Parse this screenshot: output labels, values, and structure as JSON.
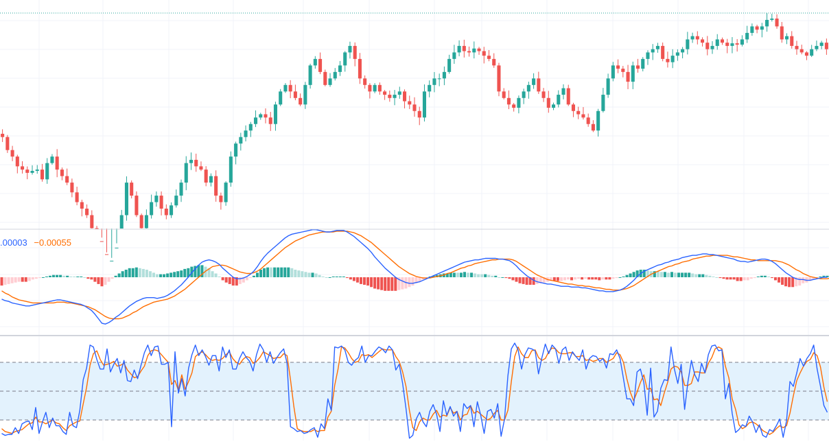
{
  "colors": {
    "up": "#26a69a",
    "down": "#ef5350",
    "hist_up_strong": "#26a69a",
    "hist_up_weak": "#b2dfdb",
    "hist_down_strong": "#ef5350",
    "hist_down_weak": "#ffcdd2",
    "macd_line": "#2962ff",
    "signal_line": "#ff6d00",
    "stoch_k": "#2962ff",
    "stoch_d": "#ff6d00",
    "grid": "#f0f3fa",
    "band_fill": "#e3f2fd",
    "separator": "#d1d4dc",
    "dashed_level": "#787b86"
  },
  "macd_legend": {
    "macd_value": ".00003",
    "signal_value": "−0.00055"
  },
  "chart_data": [
    {
      "type": "candlestick",
      "panel": "price",
      "grid": true,
      "y_range": [
        0,
        330
      ],
      "peak_level": 315,
      "wick_jitter_seed": 7,
      "closes": [
        130,
        110,
        100,
        85,
        80,
        75,
        78,
        80,
        65,
        90,
        100,
        80,
        70,
        60,
        45,
        30,
        20,
        10,
        -10,
        -30,
        -50,
        -70,
        -60,
        -40,
        10,
        60,
        40,
        10,
        -10,
        10,
        30,
        40,
        20,
        10,
        25,
        40,
        60,
        90,
        95,
        85,
        80,
        60,
        70,
        40,
        30,
        60,
        100,
        120,
        130,
        140,
        150,
        160,
        165,
        160,
        150,
        180,
        200,
        210,
        200,
        190,
        180,
        210,
        240,
        250,
        230,
        210,
        220,
        230,
        240,
        260,
        270,
        250,
        220,
        210,
        200,
        210,
        200,
        195,
        190,
        195,
        200,
        185,
        180,
        170,
        160,
        200,
        210,
        220,
        220,
        230,
        250,
        260,
        270,
        262,
        260,
        266,
        262,
        255,
        250,
        240,
        200,
        190,
        180,
        175,
        190,
        200,
        210,
        220,
        200,
        190,
        175,
        180,
        195,
        205,
        180,
        170,
        165,
        160,
        150,
        140,
        170,
        195,
        220,
        240,
        235,
        230,
        215,
        240,
        235,
        250,
        260,
        265,
        270,
        250,
        245,
        255,
        260,
        265,
        280,
        285,
        280,
        275,
        265,
        270,
        280,
        275,
        270,
        274,
        272,
        280,
        290,
        300,
        295,
        300,
        310,
        312,
        300,
        280,
        285,
        270,
        265,
        260,
        255,
        265,
        270,
        275,
        265
      ]
    },
    {
      "type": "macd",
      "panel": "macd",
      "grid": true,
      "y_range": [
        -1,
        1
      ],
      "macd": [
        -0.29,
        -0.31,
        -0.32,
        -0.34,
        -0.35,
        -0.36,
        -0.37,
        -0.38,
        -0.38,
        -0.37,
        -0.36,
        -0.35,
        -0.34,
        -0.33,
        -0.32,
        -0.31,
        -0.3,
        -0.3,
        -0.31,
        -0.32,
        -0.33,
        -0.34,
        -0.35,
        -0.36,
        -0.38,
        -0.41,
        -0.44,
        -0.49,
        -0.55,
        -0.61,
        -0.62,
        -0.6,
        -0.57,
        -0.53,
        -0.5,
        -0.46,
        -0.42,
        -0.38,
        -0.35,
        -0.32,
        -0.3,
        -0.28,
        -0.27,
        -0.27,
        -0.27,
        -0.28,
        -0.27,
        -0.26,
        -0.24,
        -0.21,
        -0.18,
        -0.14,
        -0.1,
        -0.05,
        0.0,
        0.06,
        0.11,
        0.16,
        0.2,
        0.22,
        0.23,
        0.22,
        0.2,
        0.17,
        0.12,
        0.08,
        0.04,
        0.0,
        -0.02,
        -0.02,
        -0.01,
        0.01,
        0.04,
        0.08,
        0.14,
        0.21,
        0.27,
        0.32,
        0.36,
        0.4,
        0.44,
        0.48,
        0.52,
        0.55,
        0.57,
        0.58,
        0.59,
        0.6,
        0.61,
        0.62,
        0.63,
        0.63,
        0.62,
        0.61,
        0.6,
        0.6,
        0.61,
        0.62,
        0.62,
        0.62,
        0.6,
        0.57,
        0.54,
        0.5,
        0.46,
        0.42,
        0.38,
        0.33,
        0.27,
        0.22,
        0.17,
        0.12,
        0.08,
        0.04,
        0.0,
        -0.03,
        -0.05,
        -0.07,
        -0.08,
        -0.08,
        -0.07,
        -0.06,
        -0.04,
        -0.02,
        0.0,
        0.02,
        0.04,
        0.06,
        0.08,
        0.1,
        0.12,
        0.14,
        0.16,
        0.18,
        0.2,
        0.21,
        0.22,
        0.23,
        0.23,
        0.24,
        0.25,
        0.25,
        0.25,
        0.25,
        0.24,
        0.24,
        0.23,
        0.22,
        0.19,
        0.15,
        0.1,
        0.06,
        0.02,
        -0.01,
        -0.04,
        -0.06,
        -0.07,
        -0.08,
        -0.09,
        -0.09,
        -0.1,
        -0.11,
        -0.12,
        -0.12,
        -0.12,
        -0.13,
        -0.13,
        -0.13,
        -0.14,
        -0.14,
        -0.15,
        -0.16,
        -0.17,
        -0.18,
        -0.18,
        -0.19,
        -0.19,
        -0.19,
        -0.18,
        -0.17,
        -0.15,
        -0.12,
        -0.08,
        -0.04,
        0.01,
        0.05,
        0.08,
        0.1,
        0.12,
        0.14,
        0.16,
        0.17,
        0.19,
        0.2,
        0.22,
        0.23,
        0.24,
        0.26,
        0.27,
        0.28,
        0.29,
        0.29,
        0.3,
        0.31,
        0.31,
        0.3,
        0.3,
        0.29,
        0.28,
        0.27,
        0.26,
        0.25,
        0.24,
        0.22,
        0.21,
        0.21,
        0.2,
        0.21,
        0.22,
        0.23,
        0.24,
        0.24,
        0.23,
        0.21,
        0.18,
        0.14,
        0.1,
        0.06,
        0.03,
        0.0,
        -0.02,
        -0.03,
        -0.03,
        -0.04,
        -0.04,
        -0.03,
        -0.02,
        -0.01,
        0.0,
        0.0
      ],
      "signal": [
        -0.18,
        -0.21,
        -0.23,
        -0.26,
        -0.28,
        -0.3,
        -0.31,
        -0.32,
        -0.33,
        -0.34,
        -0.34,
        -0.34,
        -0.34,
        -0.34,
        -0.34,
        -0.34,
        -0.33,
        -0.33,
        -0.33,
        -0.34,
        -0.34,
        -0.35,
        -0.36,
        -0.37,
        -0.38,
        -0.39,
        -0.41,
        -0.43,
        -0.46,
        -0.49,
        -0.52,
        -0.54,
        -0.55,
        -0.55,
        -0.55,
        -0.54,
        -0.52,
        -0.5,
        -0.47,
        -0.45,
        -0.42,
        -0.39,
        -0.37,
        -0.35,
        -0.33,
        -0.32,
        -0.31,
        -0.3,
        -0.29,
        -0.27,
        -0.25,
        -0.22,
        -0.19,
        -0.16,
        -0.12,
        -0.08,
        -0.04,
        0.0,
        0.04,
        0.08,
        0.11,
        0.14,
        0.15,
        0.16,
        0.16,
        0.15,
        0.13,
        0.11,
        0.09,
        0.07,
        0.06,
        0.05,
        0.05,
        0.06,
        0.08,
        0.11,
        0.15,
        0.19,
        0.23,
        0.27,
        0.31,
        0.35,
        0.39,
        0.42,
        0.45,
        0.48,
        0.5,
        0.52,
        0.54,
        0.56,
        0.57,
        0.58,
        0.59,
        0.6,
        0.6,
        0.6,
        0.6,
        0.61,
        0.61,
        0.61,
        0.61,
        0.6,
        0.59,
        0.57,
        0.55,
        0.52,
        0.49,
        0.46,
        0.42,
        0.38,
        0.34,
        0.3,
        0.26,
        0.22,
        0.18,
        0.14,
        0.11,
        0.08,
        0.05,
        0.03,
        0.01,
        0.0,
        -0.01,
        -0.01,
        -0.01,
        0.0,
        0.01,
        0.02,
        0.03,
        0.05,
        0.06,
        0.08,
        0.1,
        0.12,
        0.13,
        0.15,
        0.16,
        0.18,
        0.19,
        0.2,
        0.21,
        0.22,
        0.23,
        0.23,
        0.24,
        0.24,
        0.24,
        0.24,
        0.23,
        0.21,
        0.18,
        0.15,
        0.12,
        0.09,
        0.06,
        0.03,
        0.01,
        -0.01,
        -0.03,
        -0.04,
        -0.05,
        -0.06,
        -0.07,
        -0.08,
        -0.09,
        -0.09,
        -0.1,
        -0.11,
        -0.11,
        -0.12,
        -0.12,
        -0.13,
        -0.14,
        -0.14,
        -0.15,
        -0.16,
        -0.16,
        -0.17,
        -0.17,
        -0.17,
        -0.16,
        -0.15,
        -0.13,
        -0.11,
        -0.08,
        -0.05,
        -0.02,
        0.01,
        0.04,
        0.06,
        0.08,
        0.1,
        0.12,
        0.14,
        0.15,
        0.17,
        0.18,
        0.2,
        0.21,
        0.22,
        0.24,
        0.25,
        0.26,
        0.27,
        0.28,
        0.28,
        0.29,
        0.29,
        0.29,
        0.29,
        0.29,
        0.28,
        0.27,
        0.27,
        0.26,
        0.25,
        0.24,
        0.23,
        0.23,
        0.22,
        0.22,
        0.22,
        0.22,
        0.22,
        0.22,
        0.21,
        0.2,
        0.18,
        0.16,
        0.13,
        0.1,
        0.08,
        0.05,
        0.03,
        0.01,
        0.0,
        -0.01,
        -0.02,
        -0.02,
        -0.02,
        -0.01,
        -0.01,
        0.0
      ]
    },
    {
      "type": "stochastic",
      "panel": "stochastic",
      "grid": true,
      "y_range": [
        0,
        100
      ],
      "levels": [
        80,
        50,
        20
      ],
      "k": [
        6,
        4,
        5,
        5,
        12,
        6,
        16,
        18,
        19,
        10,
        33,
        6,
        18,
        28,
        12,
        22,
        14,
        14,
        8,
        5,
        28,
        14,
        12,
        30,
        62,
        74,
        98,
        96,
        83,
        73,
        73,
        94,
        70,
        78,
        84,
        69,
        82,
        61,
        60,
        72,
        63,
        77,
        90,
        98,
        87,
        96,
        97,
        78,
        78,
        80,
        13,
        91,
        48,
        63,
        45,
        74,
        88,
        98,
        87,
        93,
        86,
        77,
        87,
        87,
        71,
        96,
        85,
        93,
        73,
        73,
        84,
        91,
        85,
        81,
        71,
        88,
        99,
        93,
        80,
        91,
        79,
        85,
        90,
        94,
        79,
        13,
        11,
        8,
        9,
        6,
        7,
        10,
        12,
        2,
        16,
        11,
        42,
        30,
        96,
        95,
        97,
        93,
        80,
        77,
        82,
        85,
        97,
        80,
        87,
        87,
        92,
        96,
        94,
        90,
        97,
        93,
        72,
        78,
        58,
        32,
        1,
        4,
        21,
        28,
        18,
        13,
        29,
        36,
        26,
        8,
        40,
        25,
        34,
        24,
        29,
        8,
        37,
        32,
        35,
        13,
        39,
        25,
        6,
        29,
        31,
        22,
        37,
        3,
        21,
        66,
        94,
        100,
        93,
        73,
        88,
        95,
        94,
        92,
        68,
        85,
        99,
        89,
        98,
        94,
        79,
        93,
        96,
        82,
        91,
        86,
        82,
        93,
        73,
        84,
        87,
        86,
        81,
        84,
        74,
        89,
        88,
        93,
        84,
        63,
        42,
        42,
        35,
        70,
        73,
        59,
        25,
        74,
        23,
        29,
        53,
        62,
        61,
        96,
        73,
        58,
        78,
        31,
        60,
        82,
        67,
        60,
        79,
        69,
        88,
        97,
        98,
        92,
        93,
        42,
        58,
        27,
        7,
        10,
        15,
        13,
        24,
        18,
        7,
        15,
        4,
        2,
        10,
        8,
        14,
        21,
        2,
        19,
        60,
        55,
        69,
        84,
        76,
        84,
        89,
        98,
        73,
        55,
        35,
        28
      ],
      "d": [
        11,
        8,
        7,
        6,
        8,
        9,
        10,
        13,
        16,
        17,
        23,
        18,
        18,
        16,
        18,
        20,
        17,
        16,
        12,
        9,
        14,
        16,
        18,
        19,
        37,
        54,
        77,
        89,
        92,
        83,
        77,
        78,
        79,
        81,
        76,
        77,
        79,
        72,
        68,
        64,
        65,
        71,
        76,
        87,
        92,
        93,
        92,
        88,
        84,
        80,
        57,
        61,
        51,
        67,
        52,
        60,
        69,
        86,
        89,
        91,
        88,
        84,
        82,
        83,
        82,
        84,
        88,
        91,
        84,
        80,
        78,
        83,
        86,
        85,
        79,
        81,
        85,
        91,
        89,
        87,
        84,
        85,
        85,
        89,
        87,
        62,
        34,
        11,
        9,
        8,
        8,
        8,
        10,
        8,
        9,
        9,
        23,
        29,
        56,
        73,
        96,
        95,
        90,
        84,
        80,
        81,
        88,
        87,
        88,
        85,
        88,
        91,
        94,
        93,
        93,
        93,
        86,
        81,
        70,
        55,
        30,
        12,
        9,
        18,
        22,
        20,
        20,
        26,
        30,
        23,
        25,
        24,
        33,
        27,
        29,
        20,
        25,
        26,
        35,
        27,
        29,
        26,
        23,
        20,
        22,
        27,
        30,
        20,
        20,
        30,
        60,
        86,
        96,
        89,
        85,
        85,
        92,
        93,
        85,
        82,
        84,
        91,
        95,
        94,
        90,
        89,
        89,
        90,
        90,
        86,
        86,
        87,
        82,
        83,
        81,
        82,
        84,
        84,
        80,
        82,
        84,
        90,
        88,
        80,
        63,
        49,
        40,
        49,
        59,
        67,
        52,
        53,
        41,
        42,
        35,
        48,
        59,
        73,
        76,
        75,
        70,
        56,
        56,
        58,
        70,
        70,
        69,
        69,
        79,
        85,
        94,
        96,
        94,
        76,
        64,
        42,
        31,
        15,
        11,
        13,
        17,
        18,
        16,
        13,
        9,
        7,
        5,
        7,
        11,
        14,
        12,
        14,
        27,
        45,
        61,
        69,
        76,
        81,
        83,
        90,
        87,
        75,
        54,
        39
      ]
    }
  ]
}
